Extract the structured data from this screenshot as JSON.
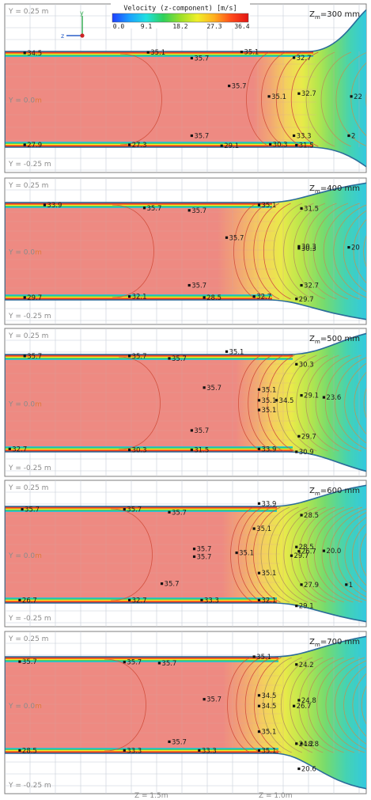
{
  "colorbar": {
    "title": "Velocity (z-component) [m/s]",
    "ticks": [
      "0.0",
      "9.1",
      "18.2",
      "27.3",
      "36.4"
    ],
    "colors": [
      "#1f3fff",
      "#1aa0ff",
      "#20e0e0",
      "#2fd05a",
      "#9adf2a",
      "#f0ef2a",
      "#ffae1f",
      "#ff4a1a",
      "#e21414"
    ]
  },
  "axis_triad": {
    "z": "z",
    "y": "y"
  },
  "labels": {
    "y_top": "Y = 0.25 m",
    "y_mid_prefix": "Y = 0.0",
    "y_mid_unit": "m",
    "y_bottom": "Y = -0.25 m",
    "z_a": "Z = 1.5m",
    "z_b": "Z = 1.0m"
  },
  "colors": {
    "core": "#ee8a82",
    "contour": "#d2513f",
    "wall": "#2a6c9a",
    "grid": "#c6ced8",
    "frame": "#7e7e7e",
    "marker": "#111111"
  },
  "panels": [
    {
      "label": "Zm=300 mm",
      "markers": [
        {
          "text": "34.5",
          "y": 0.985,
          "z": 1.92
        },
        {
          "text": "35.1",
          "y": 0.99,
          "z": 1.425
        },
        {
          "text": "35.7",
          "y": 0.93,
          "z": 1.25
        },
        {
          "text": "35.1",
          "y": 0.995,
          "z": 1.05
        },
        {
          "text": "32.7",
          "y": 0.935,
          "z": 0.84
        },
        {
          "text": "35.7",
          "y": 0.64,
          "z": 1.1
        },
        {
          "text": "35.1",
          "y": 0.53,
          "z": 0.94
        },
        {
          "text": "32.7",
          "y": 0.56,
          "z": 0.82
        },
        {
          "text": "22",
          "y": 0.53,
          "z": 0.61
        },
        {
          "text": "35.7",
          "y": 0.12,
          "z": 1.25
        },
        {
          "text": "33.3",
          "y": 0.12,
          "z": 0.84
        },
        {
          "text": "2",
          "y": 0.12,
          "z": 0.62
        },
        {
          "text": "27.9",
          "y": 0.025,
          "z": 1.92
        },
        {
          "text": "27.3",
          "y": 0.025,
          "z": 1.5
        },
        {
          "text": "29.1",
          "y": 0.015,
          "z": 1.13
        },
        {
          "text": "30.3",
          "y": 0.03,
          "z": 0.935
        },
        {
          "text": "31.5",
          "y": 0.02,
          "z": 0.83
        }
      ]
    },
    {
      "label": "Zm=400 mm",
      "markers": [
        {
          "text": "33.9",
          "y": 0.975,
          "z": 1.84
        },
        {
          "text": "35.7",
          "y": 0.945,
          "z": 1.44
        },
        {
          "text": "35.7",
          "y": 0.92,
          "z": 1.26
        },
        {
          "text": "35.1",
          "y": 0.975,
          "z": 0.98
        },
        {
          "text": "31.5",
          "y": 0.94,
          "z": 0.81
        },
        {
          "text": "35.7",
          "y": 0.64,
          "z": 1.11
        },
        {
          "text": "30.3",
          "y": 0.55,
          "z": 0.82
        },
        {
          "text": "30.3",
          "y": 0.53,
          "z": 0.82
        },
        {
          "text": "20",
          "y": 0.54,
          "z": 0.62
        },
        {
          "text": "35.7",
          "y": 0.15,
          "z": 1.26
        },
        {
          "text": "32.7",
          "y": 0.15,
          "z": 0.81
        },
        {
          "text": "29.7",
          "y": 0.025,
          "z": 1.92
        },
        {
          "text": "32.1",
          "y": 0.035,
          "z": 1.5
        },
        {
          "text": "28.5",
          "y": 0.025,
          "z": 1.2
        },
        {
          "text": "32.7",
          "y": 0.035,
          "z": 1.0
        },
        {
          "text": "29.7",
          "y": 0.01,
          "z": 0.83
        }
      ]
    },
    {
      "label": "Zm=500 mm",
      "markers": [
        {
          "text": "35.7",
          "y": 0.985,
          "z": 1.92
        },
        {
          "text": "35.7",
          "y": 0.985,
          "z": 1.5
        },
        {
          "text": "35.7",
          "y": 0.96,
          "z": 1.34
        },
        {
          "text": "35.1",
          "y": 1.03,
          "z": 1.11
        },
        {
          "text": "30.3",
          "y": 0.9,
          "z": 0.83
        },
        {
          "text": "35.7",
          "y": 0.66,
          "z": 1.2
        },
        {
          "text": "35.1",
          "y": 0.64,
          "z": 0.98
        },
        {
          "text": "35.1",
          "y": 0.53,
          "z": 0.98
        },
        {
          "text": "34.5",
          "y": 0.53,
          "z": 0.91
        },
        {
          "text": "35.1",
          "y": 0.43,
          "z": 0.98
        },
        {
          "text": "29.1",
          "y": 0.58,
          "z": 0.81
        },
        {
          "text": "23.6",
          "y": 0.56,
          "z": 0.72
        },
        {
          "text": "35.7",
          "y": 0.22,
          "z": 1.25
        },
        {
          "text": "29.7",
          "y": 0.16,
          "z": 0.82
        },
        {
          "text": "32.7",
          "y": 0.03,
          "z": 1.98
        },
        {
          "text": "30.3",
          "y": 0.02,
          "z": 1.5
        },
        {
          "text": "31.5",
          "y": 0.02,
          "z": 1.25
        },
        {
          "text": "33.9",
          "y": 0.03,
          "z": 0.98
        },
        {
          "text": "30.9",
          "y": 0.0,
          "z": 0.83
        }
      ]
    },
    {
      "label": "Zm=600 mm",
      "markers": [
        {
          "text": "35.7",
          "y": 0.97,
          "z": 1.93
        },
        {
          "text": "35.7",
          "y": 0.97,
          "z": 1.52
        },
        {
          "text": "35.7",
          "y": 0.94,
          "z": 1.34
        },
        {
          "text": "33.9",
          "y": 1.03,
          "z": 0.98
        },
        {
          "text": "28.5",
          "y": 0.91,
          "z": 0.81
        },
        {
          "text": "35.1",
          "y": 0.77,
          "z": 1.0
        },
        {
          "text": "35.7",
          "y": 0.56,
          "z": 1.24
        },
        {
          "text": "35.1",
          "y": 0.52,
          "z": 1.07
        },
        {
          "text": "35.7",
          "y": 0.48,
          "z": 1.24
        },
        {
          "text": "28.5",
          "y": 0.58,
          "z": 0.83
        },
        {
          "text": "26.7",
          "y": 0.535,
          "z": 0.82
        },
        {
          "text": "29.7",
          "y": 0.49,
          "z": 0.85
        },
        {
          "text": "20.0",
          "y": 0.54,
          "z": 0.72
        },
        {
          "text": "35.1",
          "y": 0.31,
          "z": 0.98
        },
        {
          "text": "35.7",
          "y": 0.2,
          "z": 1.37
        },
        {
          "text": "27.9",
          "y": 0.19,
          "z": 0.81
        },
        {
          "text": "1",
          "y": 0.19,
          "z": 0.63
        },
        {
          "text": "26.7",
          "y": 0.03,
          "z": 1.94
        },
        {
          "text": "32.7",
          "y": 0.03,
          "z": 1.5
        },
        {
          "text": "33.3",
          "y": 0.03,
          "z": 1.21
        },
        {
          "text": "32.1",
          "y": 0.03,
          "z": 0.98
        },
        {
          "text": "29.1",
          "y": -0.03,
          "z": 0.83
        }
      ]
    },
    {
      "label": "Zm=700 mm",
      "markers": [
        {
          "text": "35.7",
          "y": 0.95,
          "z": 1.94
        },
        {
          "text": "35.7",
          "y": 0.945,
          "z": 1.52
        },
        {
          "text": "35.7",
          "y": 0.935,
          "z": 1.38
        },
        {
          "text": "35.1",
          "y": 1.0,
          "z": 1.0
        },
        {
          "text": "24.2",
          "y": 0.92,
          "z": 0.83
        },
        {
          "text": "35.7",
          "y": 0.56,
          "z": 1.2
        },
        {
          "text": "34.5",
          "y": 0.6,
          "z": 0.98
        },
        {
          "text": "34.5",
          "y": 0.49,
          "z": 0.98
        },
        {
          "text": "24.8",
          "y": 0.55,
          "z": 0.82
        },
        {
          "text": "26.7",
          "y": 0.49,
          "z": 0.84
        },
        {
          "text": "35.1",
          "y": 0.225,
          "z": 0.98
        },
        {
          "text": "35.7",
          "y": 0.12,
          "z": 1.34
        },
        {
          "text": "24.2",
          "y": 0.1,
          "z": 0.83
        },
        {
          "text": "18.8",
          "y": 0.1,
          "z": 0.81
        },
        {
          "text": "28.5",
          "y": 0.03,
          "z": 1.94
        },
        {
          "text": "33.3",
          "y": 0.03,
          "z": 1.52
        },
        {
          "text": "33.3",
          "y": 0.03,
          "z": 1.22
        },
        {
          "text": "35.1",
          "y": 0.03,
          "z": 0.98
        },
        {
          "text": "20.6",
          "y": -0.16,
          "z": 0.82
        }
      ]
    }
  ]
}
